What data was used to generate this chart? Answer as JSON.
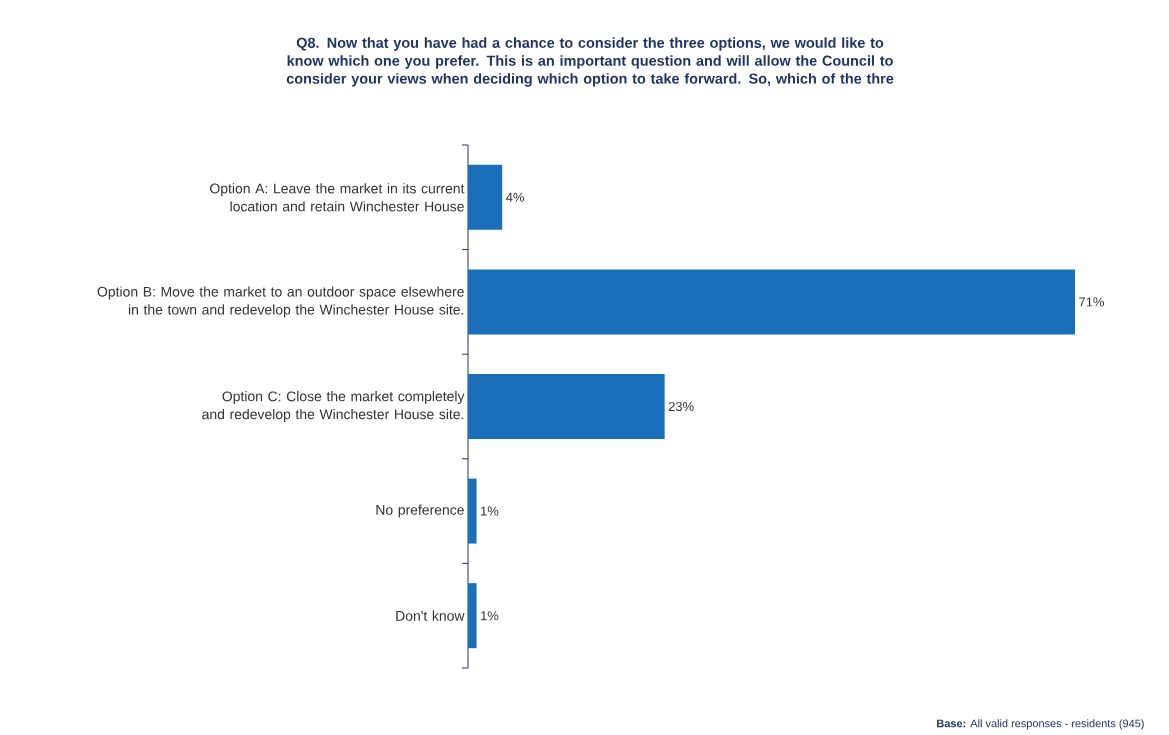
{
  "chart_data": {
    "type": "bar",
    "orientation": "horizontal",
    "title": "Q8. Now that you have had a chance to consider the three options, we would like to know which one you prefer.  This is an important question and will allow the Council to consider your views when deciding which option to take forward. So, which of the thre",
    "categories": [
      "Option A: Leave the market in its current location and retain Winchester House",
      "Option B: Move the market to an outdoor space elsewhere in the town and redevelop the Winchester House site.",
      "Option C: Close the market completely and redevelop the Winchester House site.",
      "No preference",
      "Don't know"
    ],
    "values": [
      4,
      71,
      23,
      1,
      1
    ],
    "value_labels": [
      "4%",
      "71%",
      "23%",
      "1%",
      "1%"
    ],
    "color": "#1a6fb8",
    "annotations": [
      "**Base:** All valid responses - residents (945)"
    ]
  }
}
